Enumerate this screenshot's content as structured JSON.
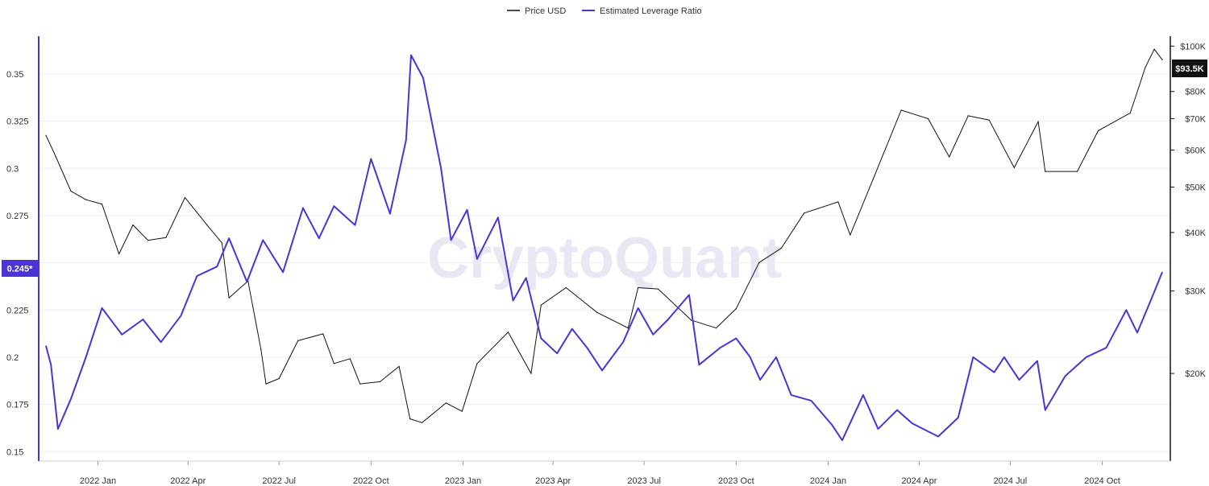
{
  "legend": {
    "price_label": "Price USD",
    "leverage_label": "Estimated Leverage Ratio"
  },
  "watermark": "CryptoQuant",
  "badges": {
    "left": "0.245*",
    "right": "$93.5K"
  },
  "colors": {
    "price": "#111111",
    "leverage": "#4b34d6",
    "grid": "#eeeeee",
    "left_axis": "#4b34d6",
    "right_axis": "#111111",
    "badge_right_bg": "#111111"
  },
  "chart_data": {
    "type": "line",
    "title": "",
    "xlabel": "",
    "ylabel": "",
    "x_ticks": [
      "2022 Jan",
      "2022 Apr",
      "2022 Jul",
      "2022 Oct",
      "2023 Jan",
      "2023 Apr",
      "2023 Jul",
      "2023 Oct",
      "2024 Jan",
      "2024 Apr",
      "2024 Jul",
      "2024 Oct"
    ],
    "x_range": [
      "2021-11-10",
      "2024-11-30"
    ],
    "y_left": {
      "ticks": [
        "0.15",
        "0.175",
        "0.2",
        "0.225",
        "0.25",
        "0.275",
        "0.3",
        "0.325",
        "0.35"
      ],
      "range": [
        0.145,
        0.37
      ]
    },
    "y_right": {
      "scale": "log",
      "ticks": [
        "$20K",
        "$30K",
        "$40K",
        "$50K",
        "$60K",
        "$70K",
        "$80K",
        "$100K"
      ],
      "range": [
        13000,
        105000
      ]
    },
    "legend_position": "top-center",
    "grid": true,
    "series": [
      {
        "name": "Price USD",
        "axis": "right",
        "points": [
          [
            "2021-11-10",
            64500
          ],
          [
            "2021-11-20",
            58000
          ],
          [
            "2021-12-05",
            49000
          ],
          [
            "2021-12-20",
            47000
          ],
          [
            "2022-01-05",
            46000
          ],
          [
            "2022-01-22",
            36000
          ],
          [
            "2022-02-05",
            41500
          ],
          [
            "2022-02-20",
            38500
          ],
          [
            "2022-03-10",
            39000
          ],
          [
            "2022-03-29",
            47500
          ],
          [
            "2022-04-20",
            41500
          ],
          [
            "2022-05-05",
            38000
          ],
          [
            "2022-05-12",
            29000
          ],
          [
            "2022-05-31",
            31500
          ],
          [
            "2022-06-13",
            22500
          ],
          [
            "2022-06-18",
            19000
          ],
          [
            "2022-07-01",
            19500
          ],
          [
            "2022-07-20",
            23500
          ],
          [
            "2022-08-14",
            24300
          ],
          [
            "2022-08-25",
            21000
          ],
          [
            "2022-09-10",
            21500
          ],
          [
            "2022-09-20",
            19000
          ],
          [
            "2022-10-10",
            19200
          ],
          [
            "2022-10-29",
            20700
          ],
          [
            "2022-11-09",
            16000
          ],
          [
            "2022-11-21",
            15700
          ],
          [
            "2022-12-15",
            17300
          ],
          [
            "2022-12-31",
            16600
          ],
          [
            "2023-01-15",
            21000
          ],
          [
            "2023-02-15",
            24500
          ],
          [
            "2023-03-10",
            20000
          ],
          [
            "2023-03-20",
            28000
          ],
          [
            "2023-04-14",
            30500
          ],
          [
            "2023-05-15",
            27000
          ],
          [
            "2023-06-15",
            25000
          ],
          [
            "2023-06-25",
            30500
          ],
          [
            "2023-07-15",
            30300
          ],
          [
            "2023-08-17",
            26000
          ],
          [
            "2023-09-11",
            25000
          ],
          [
            "2023-10-01",
            27500
          ],
          [
            "2023-10-24",
            34500
          ],
          [
            "2023-11-15",
            37000
          ],
          [
            "2023-12-08",
            44000
          ],
          [
            "2024-01-11",
            46500
          ],
          [
            "2024-01-23",
            39500
          ],
          [
            "2024-02-15",
            52000
          ],
          [
            "2024-03-14",
            73000
          ],
          [
            "2024-04-10",
            70000
          ],
          [
            "2024-05-01",
            58000
          ],
          [
            "2024-05-20",
            71000
          ],
          [
            "2024-06-10",
            69500
          ],
          [
            "2024-07-05",
            55000
          ],
          [
            "2024-07-29",
            69000
          ],
          [
            "2024-08-05",
            54000
          ],
          [
            "2024-09-06",
            54000
          ],
          [
            "2024-09-27",
            66000
          ],
          [
            "2024-10-29",
            72000
          ],
          [
            "2024-11-13",
            90000
          ],
          [
            "2024-11-22",
            98500
          ],
          [
            "2024-11-30",
            93500
          ]
        ]
      },
      {
        "name": "Estimated Leverage Ratio",
        "axis": "left",
        "points": [
          [
            "2021-11-10",
            0.206
          ],
          [
            "2021-11-15",
            0.196
          ],
          [
            "2021-11-22",
            0.162
          ],
          [
            "2021-12-05",
            0.178
          ],
          [
            "2021-12-20",
            0.2
          ],
          [
            "2022-01-05",
            0.226
          ],
          [
            "2022-01-25",
            0.212
          ],
          [
            "2022-02-15",
            0.22
          ],
          [
            "2022-03-05",
            0.208
          ],
          [
            "2022-03-25",
            0.222
          ],
          [
            "2022-04-10",
            0.243
          ],
          [
            "2022-04-30",
            0.248
          ],
          [
            "2022-05-12",
            0.263
          ],
          [
            "2022-05-30",
            0.24
          ],
          [
            "2022-06-15",
            0.262
          ],
          [
            "2022-07-05",
            0.245
          ],
          [
            "2022-07-25",
            0.279
          ],
          [
            "2022-08-10",
            0.263
          ],
          [
            "2022-08-25",
            0.28
          ],
          [
            "2022-09-15",
            0.27
          ],
          [
            "2022-10-01",
            0.305
          ],
          [
            "2022-10-20",
            0.276
          ],
          [
            "2022-11-05",
            0.315
          ],
          [
            "2022-11-10",
            0.36
          ],
          [
            "2022-11-22",
            0.348
          ],
          [
            "2022-12-10",
            0.3
          ],
          [
            "2022-12-20",
            0.262
          ],
          [
            "2023-01-05",
            0.278
          ],
          [
            "2023-01-15",
            0.252
          ],
          [
            "2023-02-05",
            0.274
          ],
          [
            "2023-02-20",
            0.23
          ],
          [
            "2023-03-05",
            0.242
          ],
          [
            "2023-03-20",
            0.21
          ],
          [
            "2023-04-05",
            0.202
          ],
          [
            "2023-04-20",
            0.215
          ],
          [
            "2023-05-05",
            0.205
          ],
          [
            "2023-05-20",
            0.193
          ],
          [
            "2023-06-10",
            0.208
          ],
          [
            "2023-06-25",
            0.226
          ],
          [
            "2023-07-10",
            0.212
          ],
          [
            "2023-07-25",
            0.22
          ],
          [
            "2023-08-15",
            0.233
          ],
          [
            "2023-08-25",
            0.196
          ],
          [
            "2023-09-15",
            0.205
          ],
          [
            "2023-10-01",
            0.21
          ],
          [
            "2023-10-15",
            0.2
          ],
          [
            "2023-10-25",
            0.188
          ],
          [
            "2023-11-10",
            0.2
          ],
          [
            "2023-11-25",
            0.18
          ],
          [
            "2023-12-15",
            0.177
          ],
          [
            "2024-01-05",
            0.164
          ],
          [
            "2024-01-15",
            0.156
          ],
          [
            "2024-02-05",
            0.18
          ],
          [
            "2024-02-20",
            0.162
          ],
          [
            "2024-03-10",
            0.172
          ],
          [
            "2024-03-25",
            0.165
          ],
          [
            "2024-04-20",
            0.158
          ],
          [
            "2024-05-10",
            0.168
          ],
          [
            "2024-05-25",
            0.2
          ],
          [
            "2024-06-15",
            0.192
          ],
          [
            "2024-06-25",
            0.2
          ],
          [
            "2024-07-10",
            0.188
          ],
          [
            "2024-07-28",
            0.198
          ],
          [
            "2024-08-05",
            0.172
          ],
          [
            "2024-08-25",
            0.19
          ],
          [
            "2024-09-15",
            0.2
          ],
          [
            "2024-10-05",
            0.205
          ],
          [
            "2024-10-25",
            0.225
          ],
          [
            "2024-11-05",
            0.213
          ],
          [
            "2024-11-20",
            0.232
          ],
          [
            "2024-11-30",
            0.245
          ]
        ]
      }
    ]
  }
}
